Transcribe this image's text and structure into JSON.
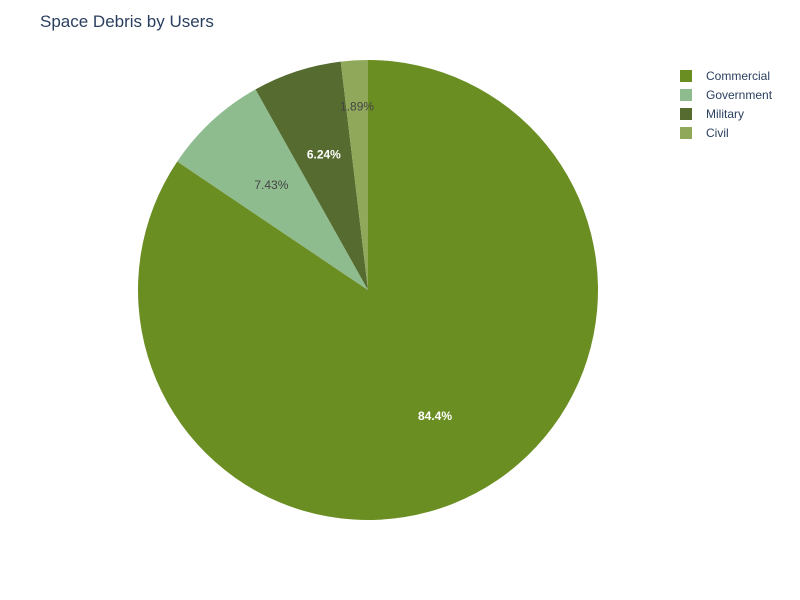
{
  "chart_data": {
    "type": "pie",
    "title": "Space Debris by Users",
    "categories": [
      "Commercial",
      "Government",
      "Military",
      "Civil"
    ],
    "values": [
      84.4,
      7.43,
      6.24,
      1.89
    ],
    "labels": [
      "84.4%",
      "7.43%",
      "6.24%",
      "1.89%"
    ],
    "colors": [
      "#6b8e23",
      "#8fbc8f",
      "#556b2f",
      "#8fa85a"
    ],
    "label_colors": [
      "#ffffff",
      "#444444",
      "#ffffff",
      "#444444"
    ],
    "direction": "clockwise",
    "start": "12 o'clock",
    "legend_position": "top-right"
  }
}
